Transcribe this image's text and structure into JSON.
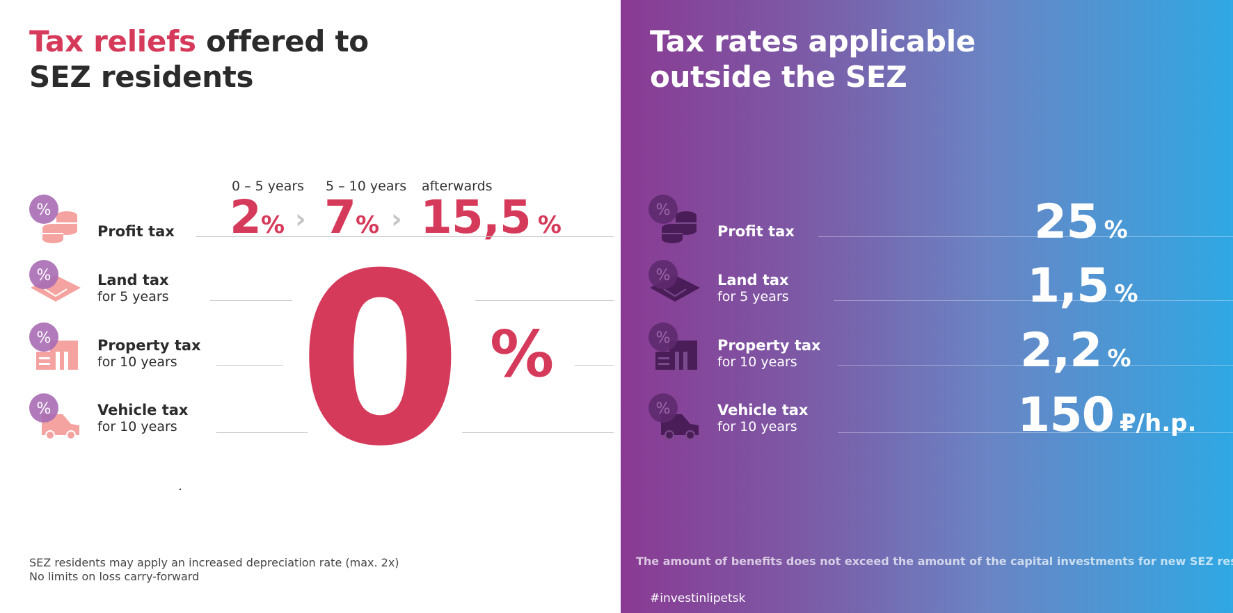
{
  "left": {
    "title_accent": "Tax reliefs",
    "title_rest_1": " offered to",
    "title_line_2": "SEZ residents",
    "periods": [
      "0 – 5 years",
      "5 – 10 years",
      "afterwards"
    ],
    "profit_rates": [
      {
        "value": "2",
        "unit": "%"
      },
      {
        "value": "7",
        "unit": "%"
      },
      {
        "value": "15,5",
        "unit": "%"
      }
    ],
    "rows": [
      {
        "name": "Profit tax",
        "sub": ""
      },
      {
        "name": "Land tax",
        "sub": "for 5 years"
      },
      {
        "name": "Property tax",
        "sub": "for 10 years"
      },
      {
        "name": "Vehicle tax",
        "sub": "for 10 years"
      }
    ],
    "zero_value": "0",
    "zero_unit": "%",
    "footnote_1": "SEZ residents may apply an increased depreciation rate (max. 2x)",
    "footnote_2": "No limits on loss carry-forward"
  },
  "right": {
    "title_line_1": "Tax rates applicable",
    "title_line_2": "outside the SEZ",
    "rows": [
      {
        "name": "Profit tax",
        "sub": "",
        "value": "25",
        "unit": "%"
      },
      {
        "name": "Land tax",
        "sub": "for 5 years",
        "value": "1,5",
        "unit": "%"
      },
      {
        "name": "Property tax",
        "sub": "for 10 years",
        "value": "2,2",
        "unit": "%"
      },
      {
        "name": "Vehicle tax",
        "sub": "for 10 years",
        "value": "150",
        "unit": "₽/h.p."
      }
    ],
    "footnote": "The amount of benefits does not exceed the amount of the capital investments for new SEZ residents.",
    "hashtag": "#investinlipetsk"
  },
  "colors": {
    "accent": "#d63a5a",
    "icon_light": "#f4a3a0",
    "icon_badge": "#a86bb4",
    "gradient_start": "#8a3a93",
    "gradient_end": "#2fa8e3"
  },
  "icons": [
    "coins-percent-icon",
    "land-percent-icon",
    "building-percent-icon",
    "car-percent-icon"
  ]
}
